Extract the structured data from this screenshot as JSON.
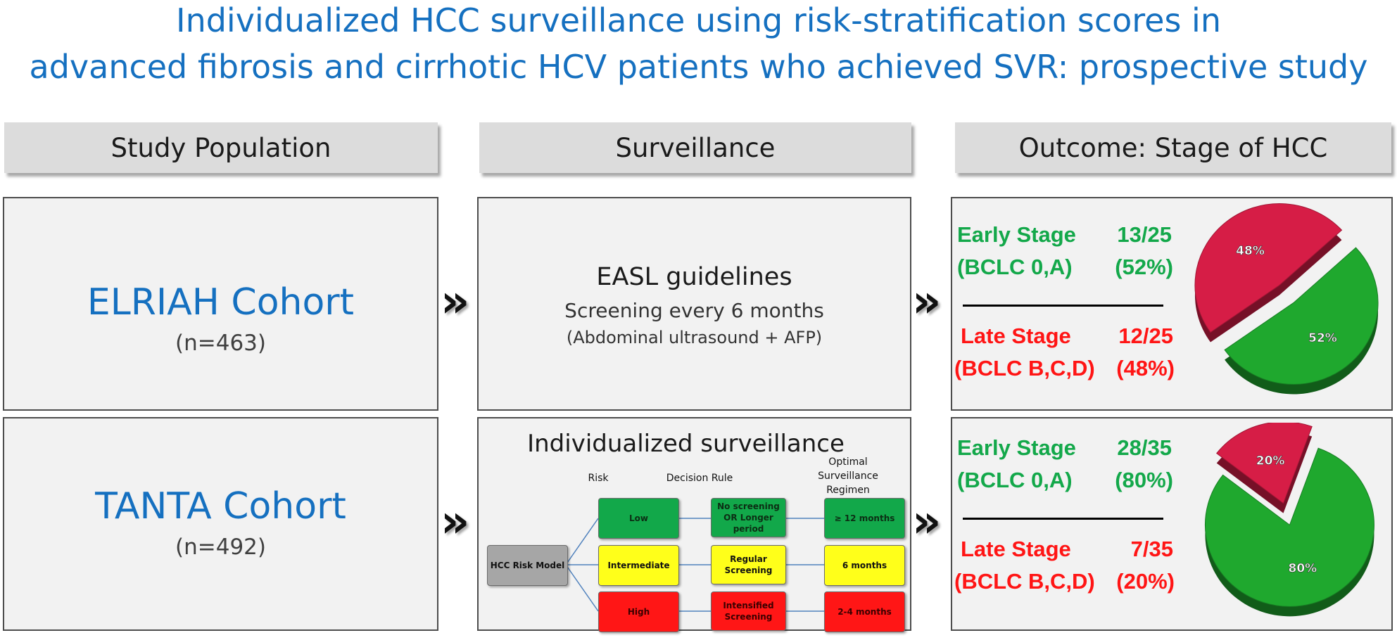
{
  "title": {
    "line1": "Individualized HCC surveillance using risk-stratification scores in",
    "line2": "advanced fibrosis and cirrhotic HCV patients who achieved SVR: prospective study"
  },
  "headers": {
    "population": "Study Population",
    "surveillance": "Surveillance",
    "outcome": "Outcome: Stage of HCC"
  },
  "cohorts": [
    {
      "name": "ELRIAH Cohort",
      "n": "(n=463)"
    },
    {
      "name": "TANTA Cohort",
      "n": "(n=492)"
    }
  ],
  "chevron": "»",
  "easl": {
    "title": "EASL guidelines",
    "line1": "Screening every 6 months",
    "line2": "(Abdominal ultrasound + AFP)"
  },
  "individualized": {
    "title": "Individualized surveillance",
    "col_risk": "Risk",
    "col_rule": "Decision Rule",
    "col_regimen": "Optimal Surveillance Regimen",
    "model": "HCC Risk Model",
    "risks": [
      "Low",
      "Intermediate",
      "High"
    ],
    "rules": [
      "No screening OR Longer period",
      "Regular Screening",
      "Intensified Screening"
    ],
    "regimens": [
      "≥ 12 months",
      "6 months",
      "2-4 months"
    ],
    "colors": {
      "low": "#12a84a",
      "intermediate": "#ffff1a",
      "high": "#ff1616"
    }
  },
  "outcomes": [
    {
      "early_label": "Early Stage",
      "early_count": "13/25",
      "early_bclc": "(BCLC 0,A)",
      "early_pct": "(52%)",
      "late_label": "Late Stage",
      "late_count": "12/25",
      "late_bclc": "(BCLC B,C,D)",
      "late_pct": "(48%)",
      "pie": [
        {
          "label": "52%",
          "value": 52,
          "color": "#1fa82e"
        },
        {
          "label": "48%",
          "value": 48,
          "color": "#d61d46"
        }
      ]
    },
    {
      "early_label": "Early Stage",
      "early_count": "28/35",
      "early_bclc": "(BCLC 0,A)",
      "early_pct": "(80%)",
      "late_label": "Late Stage",
      "late_count": "7/35",
      "late_bclc": "(BCLC B,C,D)",
      "late_pct": "(20%)",
      "pie": [
        {
          "label": "80%",
          "value": 80,
          "color": "#1fa82e"
        },
        {
          "label": "20%",
          "value": 20,
          "color": "#d61d46"
        }
      ]
    }
  ]
}
